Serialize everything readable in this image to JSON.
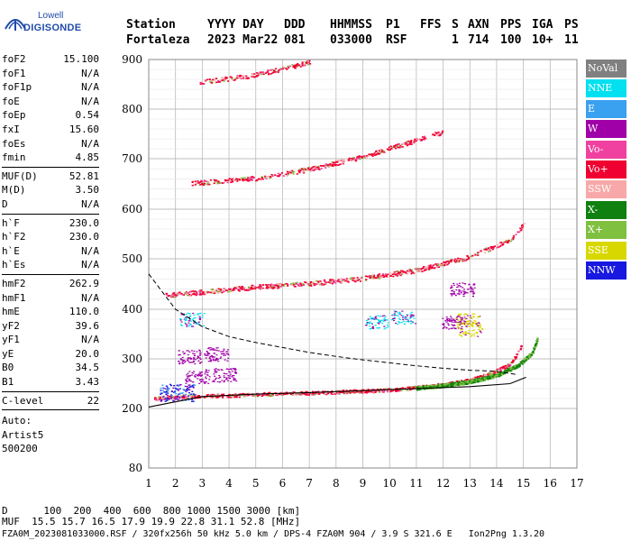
{
  "logo": {
    "top": "Lowell",
    "bottom": "DIGISONDE"
  },
  "header": {
    "labels": [
      "Station",
      "YYYY DAY",
      "DDD",
      "HHMMSS",
      "P1",
      "FFS",
      "S",
      "AXN",
      "PPS",
      "IGA",
      "PS"
    ],
    "values": [
      "Fortaleza",
      "2023 Mar22",
      "081",
      "033000",
      "RSF",
      "1",
      "714",
      "100",
      "10+",
      "11"
    ]
  },
  "params": {
    "groups": [
      [
        [
          "foF2",
          "15.100"
        ],
        [
          "foF1",
          "N/A"
        ],
        [
          "foF1p",
          "N/A"
        ],
        [
          "foE",
          "N/A"
        ],
        [
          "foEp",
          "0.54"
        ],
        [
          "fxI",
          "15.60"
        ],
        [
          "foEs",
          "N/A"
        ],
        [
          "fmin",
          "4.85"
        ]
      ],
      [
        [
          "MUF(D)",
          "52.81"
        ],
        [
          "M(D)",
          "3.50"
        ],
        [
          "D",
          "N/A"
        ]
      ],
      [
        [
          "h`F",
          "230.0"
        ],
        [
          "h`F2",
          "230.0"
        ],
        [
          "h`E",
          "N/A"
        ],
        [
          "h`Es",
          "N/A"
        ]
      ],
      [
        [
          "hmF2",
          "262.9"
        ],
        [
          "hmF1",
          "N/A"
        ],
        [
          "hmE",
          "110.0"
        ],
        [
          "yF2",
          "39.6"
        ],
        [
          "yF1",
          "N/A"
        ],
        [
          "yE",
          "20.0"
        ],
        [
          "B0",
          "34.5"
        ],
        [
          "B1",
          "3.43"
        ]
      ],
      [
        [
          "C-level",
          "22"
        ]
      ]
    ],
    "auto": [
      "Auto:",
      "Artist5",
      "500200"
    ]
  },
  "legend": [
    {
      "label": "NoVal",
      "color": "#808080"
    },
    {
      "label": "NNE",
      "color": "#00e0f0"
    },
    {
      "label": "E",
      "color": "#3aa0f0"
    },
    {
      "label": "W",
      "color": "#a000a8"
    },
    {
      "label": "Vo-",
      "color": "#f040a0"
    },
    {
      "label": "Vo+",
      "color": "#f00030"
    },
    {
      "label": "SSW",
      "color": "#f8a8a8"
    },
    {
      "label": "X-",
      "color": "#108010"
    },
    {
      "label": "X+",
      "color": "#80c040"
    },
    {
      "label": "SSE",
      "color": "#d8d800"
    },
    {
      "label": "NNW",
      "color": "#1818e0"
    }
  ],
  "chart_data": {
    "type": "scatter",
    "x_ticks": [
      1,
      2,
      3,
      4,
      5,
      6,
      7,
      8,
      9,
      10,
      11,
      12,
      13,
      14,
      15,
      16,
      17
    ],
    "y_ticks": [
      80,
      200,
      300,
      400,
      500,
      600,
      700,
      800,
      900
    ],
    "y_scale": "log",
    "xlim": [
      1,
      17
    ],
    "ylim": [
      80,
      900
    ],
    "grid": true,
    "traces": [
      {
        "layer": "O-F",
        "points": [
          [
            1.2,
            220
          ],
          [
            2,
            224
          ],
          [
            3,
            226
          ],
          [
            4,
            227
          ],
          [
            5,
            229
          ],
          [
            6,
            231
          ],
          [
            7,
            232
          ],
          [
            8,
            234
          ],
          [
            9,
            236
          ],
          [
            10,
            238
          ],
          [
            11,
            243
          ],
          [
            12,
            249
          ],
          [
            13,
            258
          ],
          [
            13.8,
            272
          ],
          [
            14.5,
            290
          ],
          [
            14.8,
            315
          ],
          [
            14.95,
            335
          ]
        ]
      },
      {
        "layer": "X-F",
        "points": [
          [
            11,
            242
          ],
          [
            12,
            247
          ],
          [
            13,
            255
          ],
          [
            14,
            268
          ],
          [
            14.8,
            288
          ],
          [
            15.3,
            312
          ],
          [
            15.5,
            340
          ]
        ]
      },
      {
        "layer": "2F",
        "points": [
          [
            1.6,
            428
          ],
          [
            3,
            435
          ],
          [
            5,
            445
          ],
          [
            7,
            452
          ],
          [
            9,
            462
          ],
          [
            11,
            478
          ],
          [
            13,
            505
          ],
          [
            14.5,
            540
          ],
          [
            15,
            570
          ]
        ]
      },
      {
        "layer": "3F",
        "points": [
          [
            2.6,
            652
          ],
          [
            5,
            662
          ],
          [
            7,
            680
          ],
          [
            9,
            705
          ],
          [
            10.8,
            735
          ],
          [
            12,
            755
          ]
        ]
      },
      {
        "layer": "4F",
        "points": [
          [
            2.9,
            855
          ],
          [
            5,
            870
          ],
          [
            7,
            895
          ]
        ]
      },
      {
        "layer": "Es-blobs",
        "points": [
          [
            2.5,
            305
          ],
          [
            3.5,
            310
          ],
          [
            2.8,
            265
          ],
          [
            3.8,
            268
          ],
          [
            2.6,
            380
          ],
          [
            9.5,
            375
          ],
          [
            10.5,
            385
          ],
          [
            12.7,
            440
          ],
          [
            12.9,
            378
          ],
          [
            12.4,
            375
          ],
          [
            13,
            360
          ]
        ]
      }
    ],
    "model_profile": [
      [
        15.1,
        262.9
      ],
      [
        14.5,
        250
      ],
      [
        13,
        244
      ],
      [
        11,
        240
      ],
      [
        9,
        236
      ],
      [
        7,
        232
      ],
      [
        5,
        229
      ],
      [
        3,
        224
      ],
      [
        1,
        203
      ]
    ],
    "muf_curve": [
      [
        1,
        470
      ],
      [
        2,
        400
      ],
      [
        3,
        365
      ],
      [
        4,
        345
      ],
      [
        5,
        333
      ],
      [
        6,
        323
      ],
      [
        7,
        313
      ],
      [
        8,
        305
      ],
      [
        9,
        298
      ],
      [
        10,
        292
      ],
      [
        11,
        286
      ],
      [
        12,
        281
      ],
      [
        13,
        277
      ],
      [
        14,
        275
      ],
      [
        14.8,
        268
      ]
    ]
  },
  "footer": {
    "line1": "D      100  200  400  600  800 1000 1500 3000 [km]",
    "line2": "MUF  15.5 15.7 16.5 17.9 19.9 22.8 31.1 52.8 [MHz]",
    "line3": "FZA0M_2023081033000.RSF / 320fx256h 50 kHz 5.0 km / DPS-4 FZA0M 904 / 3.9 S 321.6 E   Ion2Png 1.3.20"
  }
}
